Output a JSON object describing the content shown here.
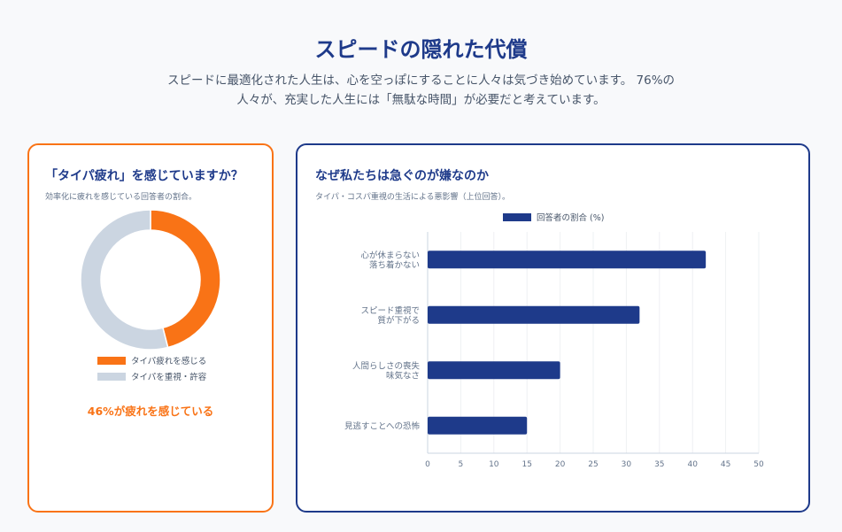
{
  "header": {
    "title": "スピードの隠れた代償",
    "subtitle_line1": "スピードに最適化された人生は、心を空っぽにすることに人々は気づき始めています。 76%の",
    "subtitle_line2": "人々が、充実した人生には「無駄な時間」が必要だと考えています。"
  },
  "left_card": {
    "title": "「タイパ疲れ」を感じていますか？",
    "description": "効率化に疲れを感じている回答者の割合。",
    "highlight": "46%が疲れを感じている"
  },
  "right_card": {
    "title": "なぜ私たちは急ぐのが嫌なのか",
    "description": "タイパ・コスパ重視の生活による悪影響（上位回答）。"
  },
  "colors": {
    "orange": "#f97316",
    "navy": "#1e3a8a",
    "grey": "#cbd5e1"
  },
  "chart_data": [
    {
      "type": "pie",
      "variant": "doughnut",
      "labels": [
        "タイパ疲れを感じる",
        "タイパを重視・許容"
      ],
      "values": [
        46,
        54
      ],
      "colors": [
        "#f97316",
        "#cbd5e1"
      ],
      "legend": "bottom"
    },
    {
      "type": "bar",
      "orientation": "horizontal",
      "categories": [
        [
          "心が休まらない",
          "落ち着かない"
        ],
        [
          "スピード重視で",
          "質が下がる"
        ],
        [
          "人間らしさの喪失",
          "味気なさ"
        ],
        [
          "見逃すことへの恐怖"
        ]
      ],
      "series": [
        {
          "name": "回答者の割合 (%)",
          "values": [
            42,
            32,
            20,
            15
          ],
          "color": "#1e3a8a"
        }
      ],
      "xlim": [
        0,
        50
      ],
      "xticks": [
        0,
        5,
        10,
        15,
        20,
        25,
        30,
        35,
        40,
        45,
        50
      ],
      "grid": true,
      "legend": "top"
    }
  ]
}
